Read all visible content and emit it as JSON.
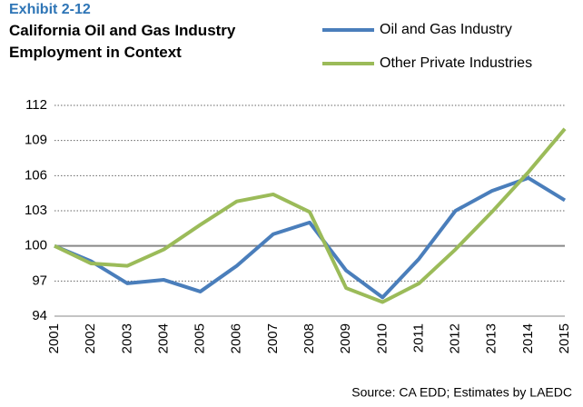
{
  "chart_data": {
    "type": "line",
    "subtitle": "Exhibit 2-12",
    "title": "California Oil and Gas Industry Employment in Context",
    "categories": [
      "2001",
      "2002",
      "2003",
      "2004",
      "2005",
      "2006",
      "2007",
      "2008",
      "2009",
      "2010",
      "2011",
      "2012",
      "2013",
      "2014",
      "2015"
    ],
    "series": [
      {
        "name": "Oil and Gas Industry",
        "color": "#4a7ebb",
        "values": [
          100,
          98.7,
          96.8,
          97.1,
          96.1,
          98.3,
          101.0,
          102.0,
          97.9,
          95.6,
          98.9,
          103.0,
          104.7,
          105.8,
          103.9
        ]
      },
      {
        "name": "Other Private Industries",
        "color": "#9bbb59",
        "values": [
          100,
          98.5,
          98.3,
          99.7,
          101.8,
          103.8,
          104.4,
          102.9,
          96.4,
          95.2,
          96.8,
          99.7,
          102.9,
          106.3,
          110.0
        ]
      }
    ],
    "ylim": [
      94,
      112
    ],
    "yticks": [
      94,
      97,
      100,
      103,
      106,
      109,
      112
    ],
    "baseline": 100,
    "grid": true,
    "legend": "top-right",
    "source": "Source: CA EDD; Estimates by LAEDC"
  }
}
